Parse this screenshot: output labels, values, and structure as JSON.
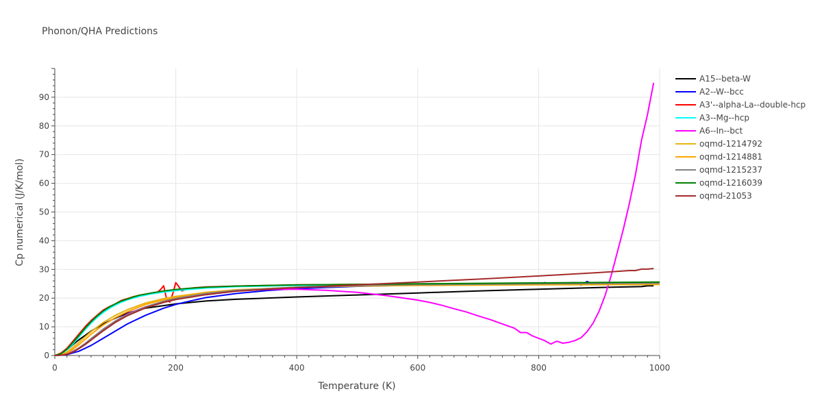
{
  "chart_data": {
    "type": "line",
    "title": "Phonon/QHA Predictions",
    "xlabel": "Temperature (K)",
    "ylabel": "Cp numerical (J/K/mol)",
    "xlim": [
      0,
      1000
    ],
    "ylim": [
      0,
      100
    ],
    "x_ticks": [
      0,
      200,
      400,
      600,
      800,
      1000
    ],
    "y_ticks": [
      0,
      10,
      20,
      30,
      40,
      50,
      60,
      70,
      80,
      90
    ],
    "grid": true,
    "legend_position": "top-right",
    "series": [
      {
        "name": "A15--beta-W",
        "color": "#000000",
        "x": [
          0,
          10,
          20,
          30,
          40,
          50,
          60,
          80,
          100,
          120,
          150,
          200,
          250,
          300,
          400,
          500,
          600,
          700,
          800,
          900,
          970,
          980,
          990
        ],
        "y": [
          0,
          0.5,
          2,
          3.8,
          5.5,
          7,
          8.5,
          11,
          13,
          14.8,
          16.5,
          18,
          19,
          19.6,
          20.4,
          21.1,
          21.8,
          22.5,
          23.1,
          23.7,
          24,
          24.3,
          24.3
        ]
      },
      {
        "name": "A2--W--bcc",
        "color": "#0000ff",
        "x": [
          0,
          20,
          40,
          60,
          80,
          100,
          120,
          150,
          180,
          200,
          220,
          250,
          300,
          350,
          400,
          500,
          600,
          700,
          780,
          790,
          800,
          810,
          820,
          840,
          860,
          870,
          880,
          890,
          900,
          950,
          990
        ],
        "y": [
          0,
          0.3,
          1.5,
          3.5,
          6,
          8.5,
          11,
          14,
          16.5,
          17.8,
          18.8,
          20.2,
          21.6,
          22.6,
          23.3,
          24.1,
          24.5,
          24.8,
          25,
          25.3,
          24.7,
          25.4,
          24.9,
          25.2,
          25.4,
          24.5,
          25.8,
          24.9,
          25.3,
          25.4,
          25.5
        ]
      },
      {
        "name": "A3'--alpha-La--double-hcp",
        "color": "#ff0000",
        "x": [
          0,
          10,
          20,
          30,
          40,
          50,
          60,
          70,
          80,
          90,
          100,
          110,
          120,
          130,
          140,
          150,
          160,
          170,
          175,
          180,
          185,
          190,
          195,
          200,
          205,
          210,
          220,
          230,
          250,
          300,
          400,
          500,
          600,
          800,
          1000
        ],
        "y": [
          0,
          0.8,
          2.5,
          5,
          7.5,
          10,
          12.2,
          14,
          15.8,
          17,
          18,
          19.2,
          19.8,
          20.5,
          21,
          21.4,
          21.8,
          22.1,
          23,
          24.3,
          19.5,
          18.6,
          21.5,
          25.4,
          24,
          22.5,
          23.3,
          23.6,
          23.9,
          24.2,
          24.6,
          24.8,
          24.9,
          25.1,
          25.2
        ]
      },
      {
        "name": "A3--Mg--hcp",
        "color": "#00ffff",
        "x": [
          0,
          10,
          20,
          30,
          40,
          50,
          60,
          70,
          80,
          90,
          100,
          110,
          120,
          140,
          160,
          180,
          200,
          220,
          250,
          300,
          400,
          500,
          600,
          800,
          1000
        ],
        "y": [
          0,
          0.5,
          2,
          4,
          6.5,
          9,
          11.3,
          13.3,
          15,
          16.4,
          17.6,
          18.6,
          19.4,
          20.6,
          21.5,
          22.1,
          22.6,
          23,
          23.5,
          24,
          24.4,
          24.6,
          24.8,
          24.9,
          25.1
        ]
      },
      {
        "name": "A6--In--bct",
        "color": "#ff00ff",
        "x": [
          0,
          20,
          40,
          60,
          80,
          100,
          120,
          150,
          200,
          250,
          300,
          350,
          400,
          450,
          500,
          550,
          600,
          620,
          640,
          660,
          680,
          700,
          720,
          740,
          760,
          770,
          780,
          790,
          800,
          810,
          820,
          830,
          840,
          850,
          860,
          870,
          880,
          890,
          900,
          910,
          920,
          930,
          940,
          950,
          960,
          970,
          980,
          990
        ],
        "y": [
          0,
          0.5,
          2.5,
          5.5,
          9,
          12,
          14.5,
          17,
          20,
          21.5,
          22.5,
          23,
          23.1,
          22.7,
          22,
          20.8,
          19.3,
          18.5,
          17.5,
          16.3,
          15.2,
          13.8,
          12.5,
          11,
          9.5,
          8,
          8,
          6.8,
          6,
          5.2,
          4,
          5,
          4.3,
          4.6,
          5.2,
          6.2,
          8.3,
          11.3,
          15.5,
          21,
          28,
          36,
          44,
          53,
          63,
          75,
          84,
          95
        ]
      },
      {
        "name": "oqmd-1214792",
        "color": "#e7b416",
        "x": [
          0,
          10,
          20,
          30,
          40,
          50,
          60,
          80,
          100,
          120,
          150,
          180,
          200,
          250,
          300,
          400,
          500,
          600,
          800,
          1000
        ],
        "y": [
          0,
          0.3,
          1.2,
          2.8,
          4.6,
          6.5,
          8.3,
          11.5,
          14,
          16,
          18.3,
          19.8,
          20.6,
          22,
          22.9,
          23.8,
          24.2,
          24.4,
          24.6,
          24.7
        ]
      },
      {
        "name": "oqmd-1214881",
        "color": "#ffa500",
        "x": [
          0,
          10,
          20,
          30,
          40,
          50,
          60,
          80,
          100,
          120,
          150,
          180,
          200,
          250,
          300,
          400,
          500,
          600,
          800,
          1000
        ],
        "y": [
          0,
          0.2,
          0.9,
          2.2,
          3.8,
          5.6,
          7.4,
          10.6,
          13.2,
          15.3,
          17.8,
          19.4,
          20.3,
          21.8,
          22.8,
          23.8,
          24.3,
          24.5,
          24.8,
          25
        ]
      },
      {
        "name": "oqmd-1215237",
        "color": "#808080",
        "x": [
          0,
          10,
          20,
          30,
          40,
          50,
          60,
          80,
          100,
          120,
          150,
          180,
          200,
          250,
          300,
          400,
          500,
          600,
          800,
          1000
        ],
        "y": [
          0,
          0.1,
          0.5,
          1.4,
          2.7,
          4.2,
          5.9,
          9.2,
          12,
          14.3,
          17,
          18.9,
          19.9,
          21.6,
          22.7,
          23.8,
          24.4,
          24.7,
          25,
          25.2
        ]
      },
      {
        "name": "oqmd-1216039",
        "color": "#008000",
        "x": [
          0,
          10,
          20,
          30,
          40,
          50,
          60,
          70,
          80,
          90,
          100,
          110,
          120,
          130,
          140,
          160,
          180,
          200,
          220,
          250,
          300,
          400,
          500,
          600,
          800,
          1000
        ],
        "y": [
          0,
          0.6,
          2.2,
          4.5,
          7,
          9.5,
          11.8,
          13.8,
          15.5,
          16.9,
          18,
          19,
          19.7,
          20.4,
          21,
          21.8,
          22.5,
          23,
          23.4,
          23.8,
          24.2,
          24.6,
          24.8,
          25,
          25.3,
          25.6
        ]
      },
      {
        "name": "oqmd-21053",
        "color": "#a52a2a",
        "x": [
          0,
          10,
          20,
          30,
          40,
          50,
          60,
          80,
          100,
          120,
          150,
          180,
          200,
          250,
          300,
          400,
          500,
          600,
          700,
          800,
          900,
          950,
          960,
          970,
          980,
          990
        ],
        "y": [
          0,
          0.1,
          0.4,
          1.2,
          2.4,
          3.8,
          5.4,
          8.6,
          11.5,
          13.9,
          16.6,
          18.5,
          19.5,
          21.2,
          22.4,
          23.7,
          24.6,
          25.6,
          26.6,
          27.7,
          28.9,
          29.6,
          29.6,
          30.1,
          30.1,
          30.3
        ]
      }
    ]
  }
}
